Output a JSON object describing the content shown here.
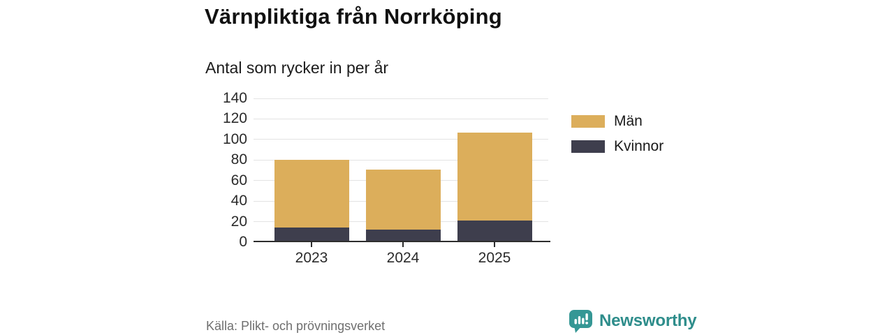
{
  "chart_data": {
    "type": "bar",
    "stacked": true,
    "title": "Värnpliktiga från Norrköping",
    "subtitle": "Antal som rycker in per år",
    "categories": [
      "2023",
      "2024",
      "2025"
    ],
    "series": [
      {
        "name": "Kvinnor",
        "color": "#3E3E4D",
        "values": [
          14,
          12,
          21
        ]
      },
      {
        "name": "Män",
        "color": "#DCAE5B",
        "values": [
          66,
          59,
          86
        ]
      }
    ],
    "stack_totals": [
      80,
      71,
      107
    ],
    "ylim": [
      0,
      140
    ],
    "yticks": [
      0,
      20,
      40,
      60,
      80,
      100,
      120,
      140
    ],
    "xlabel": "",
    "ylabel": "",
    "grid": "horizontal",
    "legend_position": "right"
  },
  "legend": {
    "items": [
      {
        "label": "Män",
        "color": "#DCAE5B"
      },
      {
        "label": "Kvinnor",
        "color": "#3E3E4D"
      }
    ]
  },
  "footer": {
    "source": "Källa: Plikt- och prövningsverket",
    "brand": "Newsworthy",
    "brand_color": "#2E8D8B"
  }
}
